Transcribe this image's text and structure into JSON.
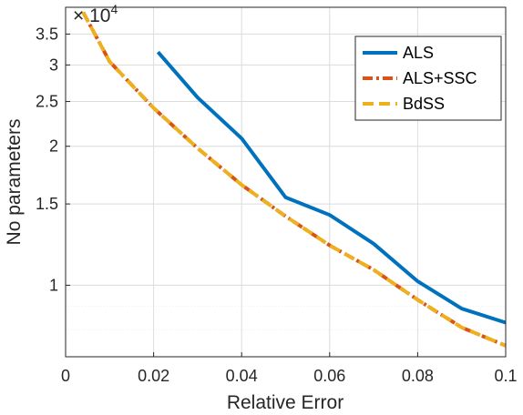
{
  "chart_data": {
    "type": "line",
    "xlabel": "Relative Error",
    "ylabel": "No parameters",
    "y_exponent_label": "× 10",
    "y_exponent": "4",
    "y_scale": "log",
    "y_multiplier": 10000,
    "xlim": [
      0,
      0.1
    ],
    "ylim": [
      7000,
      40000
    ],
    "x_ticks": [
      0,
      0.02,
      0.04,
      0.06,
      0.08,
      0.1
    ],
    "x_tick_labels": [
      "0",
      "0.02",
      "0.04",
      "0.06",
      "0.08",
      "0.1"
    ],
    "y_ticks": [
      10000,
      15000,
      20000,
      25000,
      30000,
      35000
    ],
    "y_tick_labels": [
      "1",
      "1.5",
      "2",
      "2.5",
      "3",
      "3.5"
    ],
    "grid": true,
    "legend_position": "top-right",
    "series": [
      {
        "name": "ALS",
        "color": "#0072BD",
        "style": "solid",
        "x": [
          0.021,
          0.03,
          0.04,
          0.05,
          0.06,
          0.07,
          0.08,
          0.09,
          0.1
        ],
        "y": [
          32000,
          25500,
          20800,
          15500,
          14200,
          12300,
          10200,
          8900,
          8300
        ]
      },
      {
        "name": "ALS+SSC",
        "color": "#D95319",
        "style": "dash-dot",
        "x": [
          0.004,
          0.01,
          0.02,
          0.03,
          0.04,
          0.05,
          0.06,
          0.07,
          0.08,
          0.09,
          0.1
        ],
        "y": [
          39000,
          30500,
          24200,
          19800,
          16500,
          14100,
          12200,
          10800,
          9300,
          8100,
          7400
        ]
      },
      {
        "name": "BdSS",
        "color": "#EDB120",
        "style": "dashed",
        "x": [
          0.004,
          0.01,
          0.02,
          0.03,
          0.04,
          0.05,
          0.06,
          0.07,
          0.08,
          0.09,
          0.1
        ],
        "y": [
          39000,
          30500,
          24200,
          19800,
          16500,
          14100,
          12200,
          10800,
          9300,
          8100,
          7400
        ]
      }
    ]
  }
}
